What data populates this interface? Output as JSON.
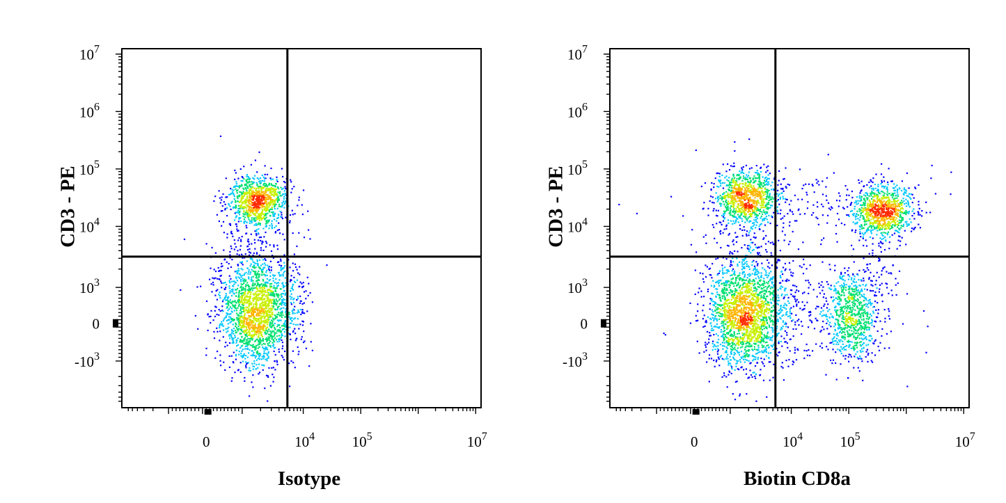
{
  "chart_data": [
    {
      "type": "scatter",
      "plot_kind": "flow cytometry pseudocolor dot plot",
      "xlabel": "Isotype",
      "ylabel": "CD3 - PE",
      "x_scale": "biexponential",
      "y_scale": "biexponential",
      "x_tick_labels": [
        {
          "value": 0,
          "base": "0",
          "exp": ""
        },
        {
          "value": 10000,
          "base": "10",
          "exp": "4"
        },
        {
          "value": 100000,
          "base": "10",
          "exp": "5"
        },
        {
          "value": 10000000,
          "base": "10",
          "exp": "7"
        }
      ],
      "y_tick_labels": [
        {
          "value": -1000,
          "base": "-10",
          "exp": "3"
        },
        {
          "value": 0,
          "base": "0",
          "exp": ""
        },
        {
          "value": 1000,
          "base": "10",
          "exp": "3"
        },
        {
          "value": 10000,
          "base": "10",
          "exp": "4"
        },
        {
          "value": 100000,
          "base": "10",
          "exp": "5"
        },
        {
          "value": 1000000,
          "base": "10",
          "exp": "6"
        },
        {
          "value": 10000000,
          "base": "10",
          "exp": "7"
        }
      ],
      "quadrant_gate": {
        "x": 5500,
        "y": 3200
      },
      "populations": [
        {
          "x_center": 1800,
          "y_center": 28000,
          "density": "high"
        },
        {
          "x_center": 1600,
          "y_center": 300,
          "density": "medium"
        }
      ],
      "density_colors": [
        "#0000ff",
        "#00c8ff",
        "#00e070",
        "#c8f000",
        "#ffb400",
        "#ff2a00"
      ]
    },
    {
      "type": "scatter",
      "plot_kind": "flow cytometry pseudocolor dot plot",
      "xlabel": "Biotin CD8a",
      "ylabel": "CD3 - PE",
      "x_scale": "biexponential",
      "y_scale": "biexponential",
      "x_tick_labels": [
        {
          "value": 0,
          "base": "0",
          "exp": ""
        },
        {
          "value": 10000,
          "base": "10",
          "exp": "4"
        },
        {
          "value": 100000,
          "base": "10",
          "exp": "5"
        },
        {
          "value": 10000000,
          "base": "10",
          "exp": "7"
        }
      ],
      "y_tick_labels": [
        {
          "value": -1000,
          "base": "-10",
          "exp": "3"
        },
        {
          "value": 0,
          "base": "0",
          "exp": ""
        },
        {
          "value": 1000,
          "base": "10",
          "exp": "3"
        },
        {
          "value": 10000,
          "base": "10",
          "exp": "4"
        },
        {
          "value": 100000,
          "base": "10",
          "exp": "5"
        },
        {
          "value": 1000000,
          "base": "10",
          "exp": "6"
        },
        {
          "value": 10000000,
          "base": "10",
          "exp": "7"
        }
      ],
      "quadrant_gate": {
        "x": 5500,
        "y": 3200
      },
      "populations": [
        {
          "x_center": 1800,
          "y_center": 32000,
          "density": "high"
        },
        {
          "x_center": 380000,
          "y_center": 19000,
          "density": "high"
        },
        {
          "x_center": 1600,
          "y_center": 250,
          "density": "medium"
        },
        {
          "x_center": 110000,
          "y_center": 200,
          "density": "low"
        }
      ],
      "density_colors": [
        "#0000ff",
        "#00c8ff",
        "#00e070",
        "#c8f000",
        "#ffb400",
        "#ff2a00"
      ]
    }
  ]
}
